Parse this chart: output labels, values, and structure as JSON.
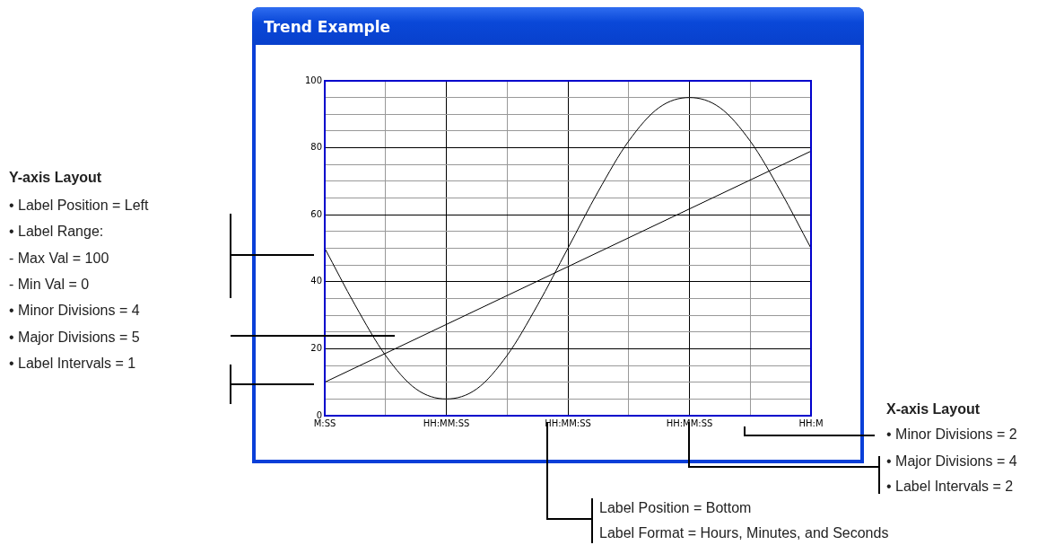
{
  "chart_data": {
    "type": "line",
    "title": "Trend Example",
    "categories": [
      "M:SS",
      null,
      null,
      null,
      "HH:MM:SS",
      null,
      null,
      null,
      "HH:MM:SS",
      null,
      null,
      null,
      "HH:MM:SS",
      null,
      null,
      null,
      "HH:M"
    ],
    "series": [
      {
        "color": "#000000",
        "values": [
          50,
          33,
          18,
          8,
          5,
          8,
          18,
          33,
          50,
          67,
          82,
          92,
          95,
          92,
          82,
          67,
          50
        ]
      },
      {
        "color": "#000000",
        "values": [
          10,
          null,
          null,
          null,
          null,
          null,
          null,
          null,
          null,
          null,
          null,
          null,
          null,
          null,
          null,
          null,
          79
        ]
      }
    ],
    "ylim": [
      0,
      100
    ],
    "yticks": [
      0,
      {
        "value": 5,
        "label": null
      },
      {
        "value": 10,
        "label": null
      },
      {
        "value": 15,
        "label": null
      },
      20,
      {
        "value": 25,
        "label": null
      },
      {
        "value": 30,
        "label": null
      },
      {
        "value": 35,
        "label": null
      },
      40,
      {
        "value": 45,
        "label": null
      },
      {
        "value": 50,
        "label": null
      },
      {
        "value": 55,
        "label": null
      },
      60,
      {
        "value": 65,
        "label": null
      },
      {
        "value": 70,
        "label": null
      },
      {
        "value": 75,
        "label": null
      },
      80,
      {
        "value": 85,
        "label": null
      },
      {
        "value": 90,
        "label": null
      },
      {
        "value": 95,
        "label": null
      },
      100
    ],
    "grid": true,
    "legend": false,
    "marker": "none",
    "line_style": "solid",
    "annotations": [
      "Y-axis Layout",
      "• Label Position = Left",
      "• Label Range:",
      "- Max Val = 100",
      "- Min Val = 0",
      "• Minor Divisions = 4",
      "• Major Divisions = 5",
      "• Label Intervals = 1",
      "X-axis Layout",
      "• Minor Divisions = 2",
      "• Major Divisions = 4",
      "• Label Intervals = 2",
      "Label Position = Bottom",
      "Label Format = Hours, Minutes, and Seconds"
    ]
  }
}
